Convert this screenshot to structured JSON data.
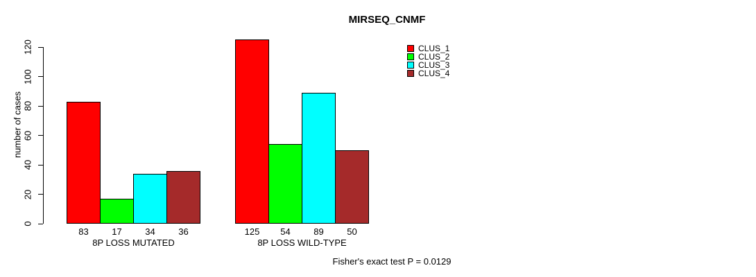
{
  "title": "MIRSEQ_CNMF",
  "y_axis": {
    "label": "number of cases",
    "ticks": [
      0,
      20,
      40,
      60,
      80,
      100,
      120
    ]
  },
  "footer": "Fisher's exact test P = 0.0129",
  "legend": {
    "items": [
      {
        "label": "CLUS_1",
        "color": "#FF0000"
      },
      {
        "label": "CLUS_2",
        "color": "#00FF00"
      },
      {
        "label": "CLUS_3",
        "color": "#00FFFF"
      },
      {
        "label": "CLUS_4",
        "color": "#A52A2A"
      }
    ]
  },
  "chart_data": {
    "type": "bar",
    "title": "MIRSEQ_CNMF",
    "xlabel": "",
    "ylabel": "number of cases",
    "categories": [
      "8P LOSS MUTATED",
      "8P LOSS WILD-TYPE"
    ],
    "series": [
      {
        "name": "CLUS_1",
        "color": "#FF0000",
        "values": [
          83,
          125
        ]
      },
      {
        "name": "CLUS_2",
        "color": "#00FF00",
        "values": [
          17,
          54
        ]
      },
      {
        "name": "CLUS_3",
        "color": "#00FFFF",
        "values": [
          34,
          89
        ]
      },
      {
        "name": "CLUS_4",
        "color": "#A52A2A",
        "values": [
          36,
          50
        ]
      }
    ],
    "bar_value_labels": [
      [
        83,
        17,
        34,
        36
      ],
      [
        125,
        54,
        89,
        50
      ]
    ],
    "ylim": [
      0,
      125
    ],
    "yticks": [
      0,
      20,
      40,
      60,
      80,
      100,
      120
    ],
    "grid": false,
    "legend_position": "top-right",
    "annotation": "Fisher's exact test P = 0.0129"
  }
}
